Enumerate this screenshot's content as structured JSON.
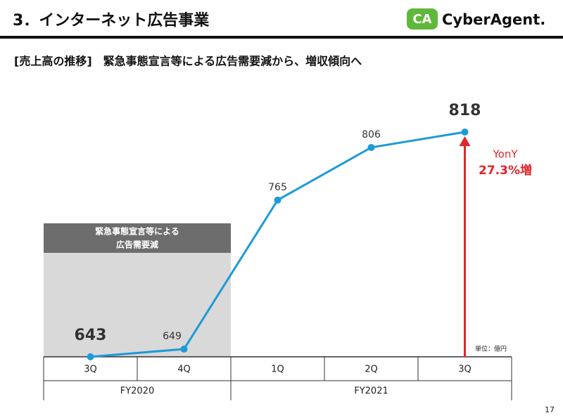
{
  "header": {
    "title": "3．インターネット広告事業",
    "logo_mark": "CA",
    "logo": "CyberAgent."
  },
  "subtitle": "[売上高の推移]　緊急事態宣言等による広告需要減から、増収傾向へ",
  "chart_data": {
    "type": "line",
    "categories": [
      "3Q",
      "4Q",
      "1Q",
      "2Q",
      "3Q"
    ],
    "groups": [
      "FY2020",
      "FY2021"
    ],
    "series": [
      {
        "name": "売上高",
        "color": "#1e9ad6",
        "values": [
          643,
          649,
          765,
          806,
          818
        ]
      }
    ],
    "shaded_note": [
      "緊急事態宣言等による",
      "広告需要減"
    ],
    "growth_label": "YonY",
    "growth_value": "27.3%増",
    "growth_color": "#e0262b",
    "unit": "単位：億円"
  },
  "page_number": "17"
}
